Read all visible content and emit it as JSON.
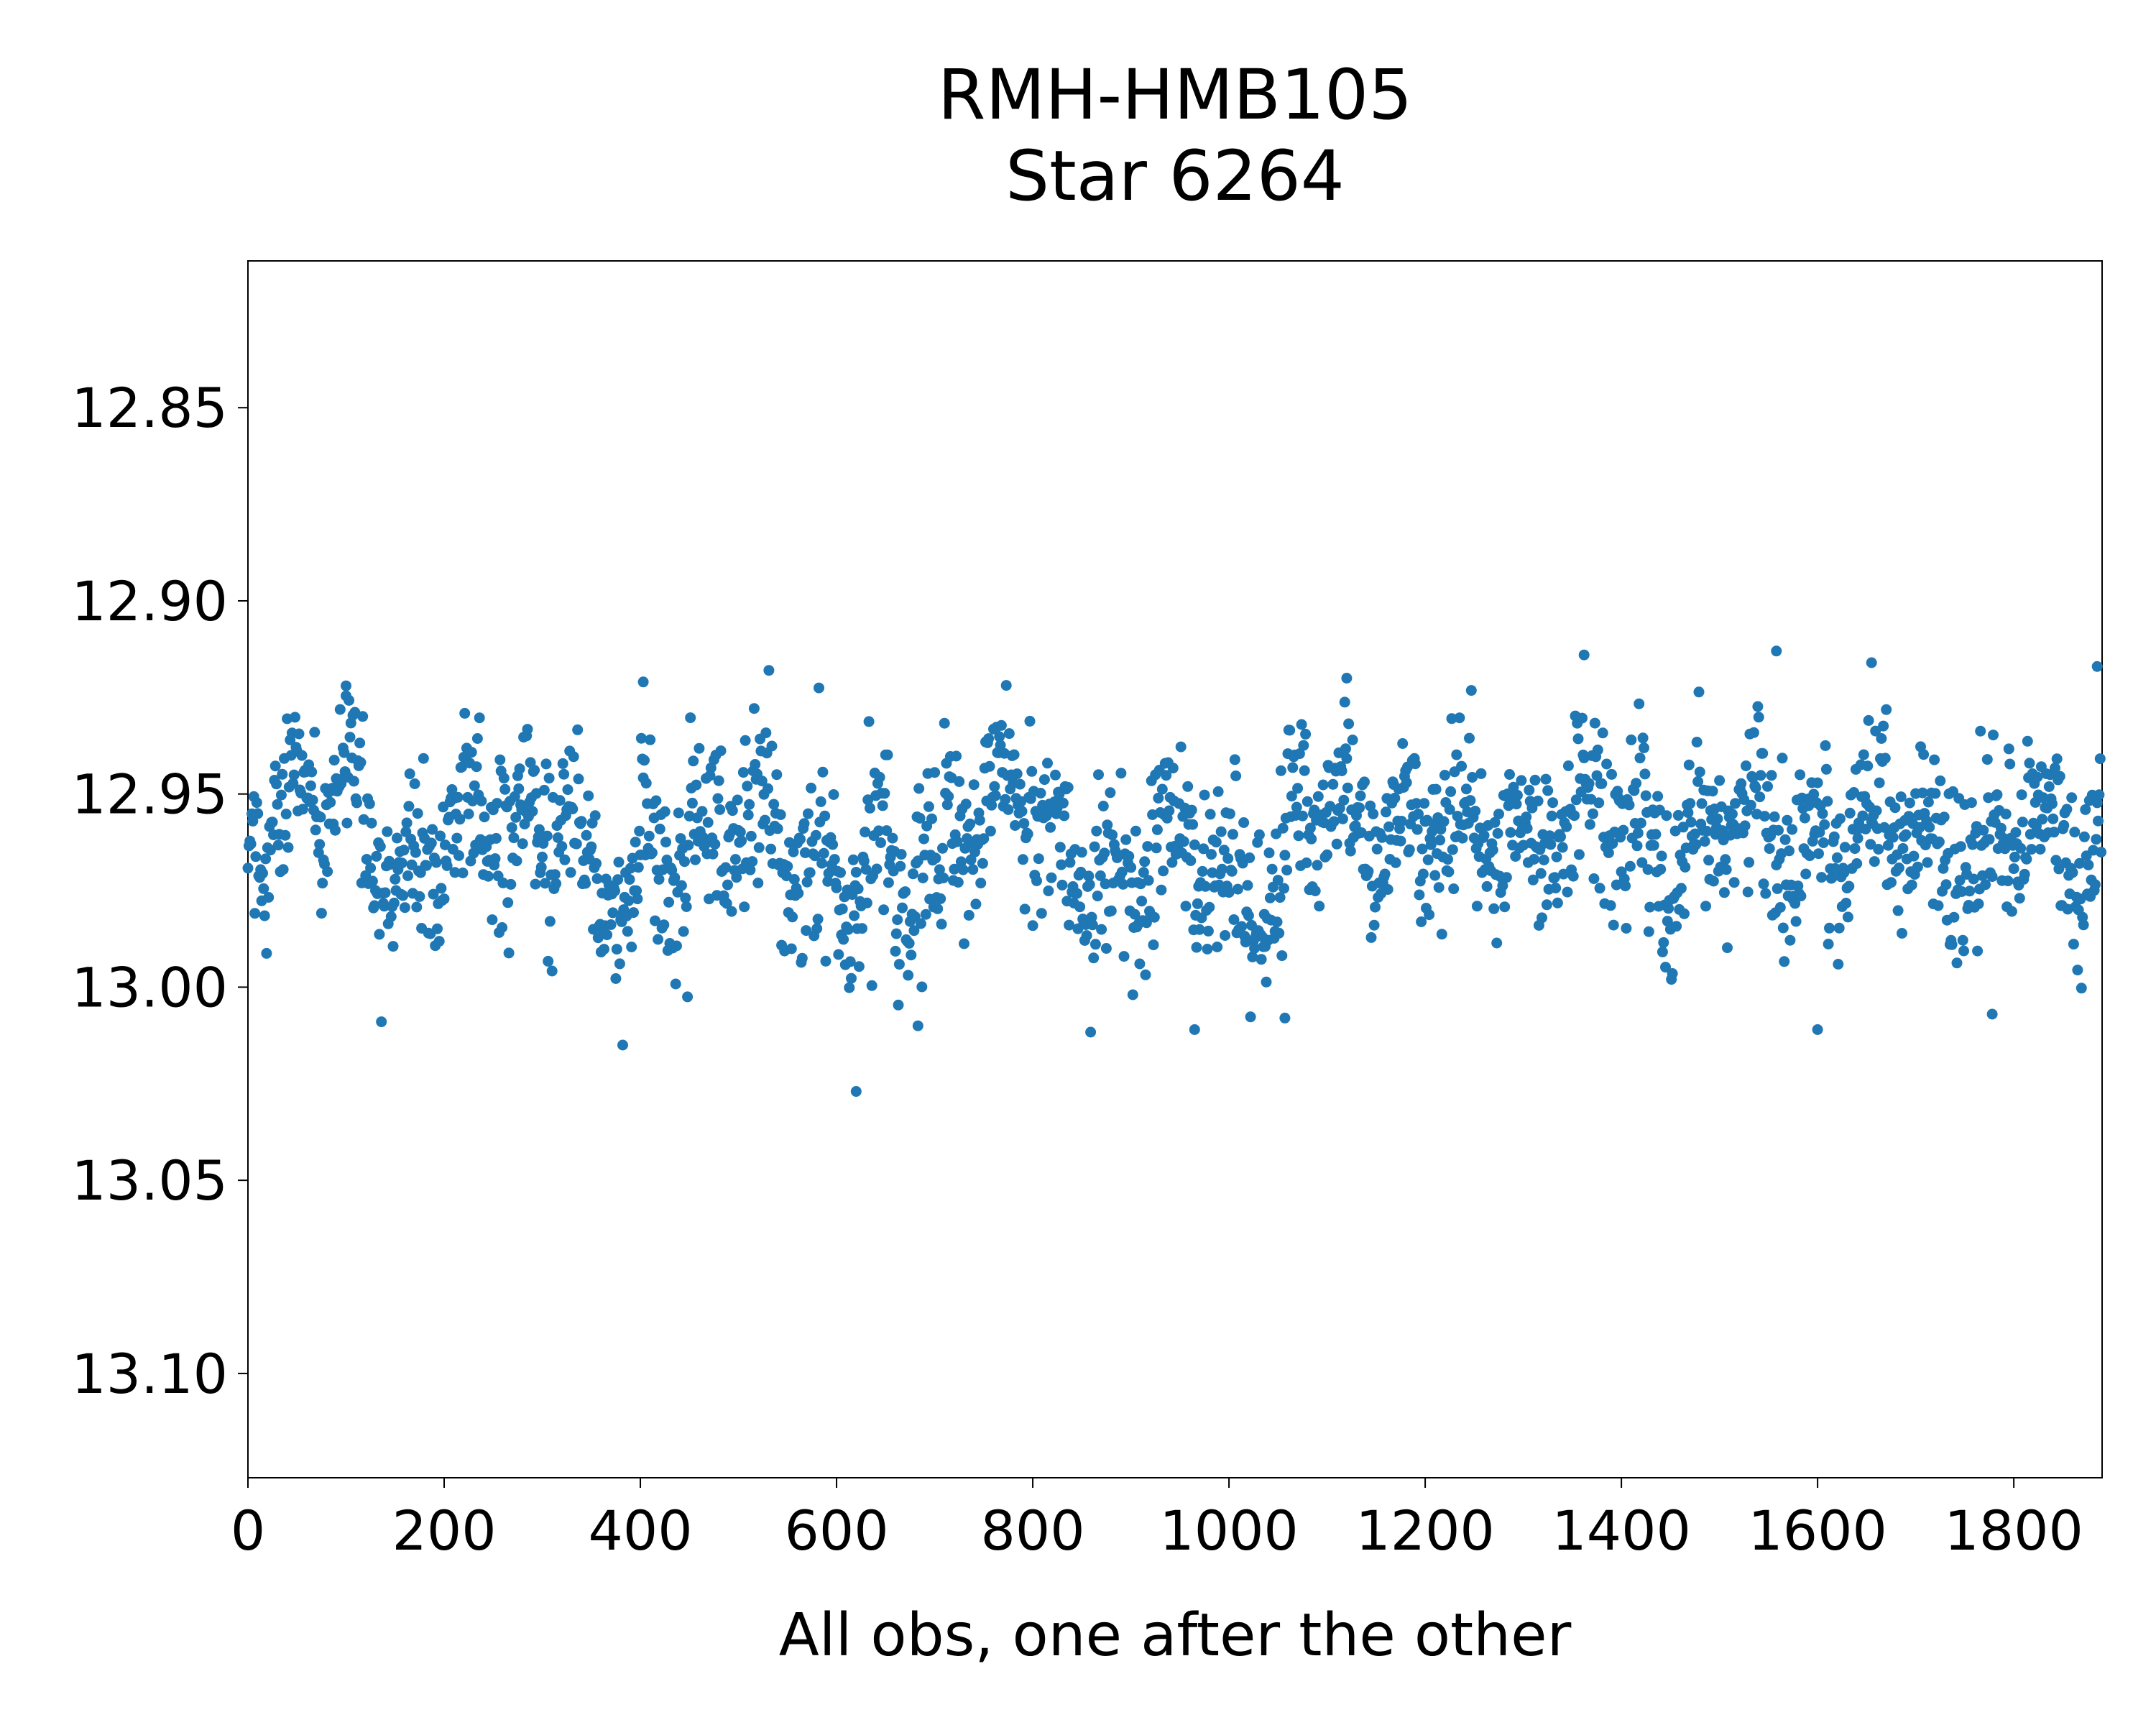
{
  "chart_data": {
    "type": "scatter",
    "title_lines": [
      "RMH-HMB105",
      "Star 6264"
    ],
    "xlabel": "All obs, one after the other",
    "ylabel": "",
    "xlim": [
      0,
      1890
    ],
    "ylim": [
      12.812,
      13.127
    ],
    "y_inverted": true,
    "x_ticks": [
      0,
      200,
      400,
      600,
      800,
      1000,
      1200,
      1400,
      1600,
      1800
    ],
    "x_tick_labels": [
      "0",
      "200",
      "400",
      "600",
      "800",
      "1000",
      "1200",
      "1400",
      "1600",
      "1800"
    ],
    "y_ticks": [
      12.85,
      12.9,
      12.95,
      13.0,
      13.05,
      13.1
    ],
    "y_tick_labels": [
      "12.85",
      "12.90",
      "12.95",
      "13.00",
      "13.05",
      "13.10"
    ],
    "grid": false,
    "marker_color": "#1f77b4",
    "n_points": 1890,
    "segments": [
      {
        "x_start": 0,
        "x_end": 120,
        "y_center": 12.953,
        "y_spread": 0.028
      },
      {
        "x_start": 120,
        "x_end": 250,
        "y_center": 12.966,
        "y_spread": 0.032
      },
      {
        "x_start": 250,
        "x_end": 340,
        "y_center": 12.955,
        "y_spread": 0.034
      },
      {
        "x_start": 340,
        "x_end": 400,
        "y_center": 12.982,
        "y_spread": 0.034
      },
      {
        "x_start": 400,
        "x_end": 600,
        "y_center": 12.962,
        "y_spread": 0.036
      },
      {
        "x_start": 600,
        "x_end": 710,
        "y_center": 12.972,
        "y_spread": 0.034
      },
      {
        "x_start": 710,
        "x_end": 800,
        "y_center": 12.952,
        "y_spread": 0.03
      },
      {
        "x_start": 800,
        "x_end": 990,
        "y_center": 12.968,
        "y_spread": 0.036
      },
      {
        "x_start": 990,
        "x_end": 1060,
        "y_center": 12.97,
        "y_spread": 0.034
      },
      {
        "x_start": 1060,
        "x_end": 1400,
        "y_center": 12.958,
        "y_spread": 0.032
      },
      {
        "x_start": 1400,
        "x_end": 1600,
        "y_center": 12.962,
        "y_spread": 0.034
      },
      {
        "x_start": 1600,
        "x_end": 1890,
        "y_center": 12.962,
        "y_spread": 0.034
      }
    ],
    "notable_points": [
      {
        "x": 620,
        "y": 13.027
      },
      {
        "x": 382,
        "y": 13.015
      },
      {
        "x": 1558,
        "y": 12.913
      },
      {
        "x": 1362,
        "y": 12.914
      },
      {
        "x": 1885,
        "y": 12.917
      },
      {
        "x": 1655,
        "y": 12.916
      },
      {
        "x": 403,
        "y": 12.921
      },
      {
        "x": 100,
        "y": 12.922
      },
      {
        "x": 1120,
        "y": 12.92
      },
      {
        "x": 683,
        "y": 13.01
      },
      {
        "x": 965,
        "y": 13.011
      },
      {
        "x": 1600,
        "y": 13.011
      },
      {
        "x": 1057,
        "y": 13.008
      },
      {
        "x": 1778,
        "y": 13.007
      }
    ]
  }
}
